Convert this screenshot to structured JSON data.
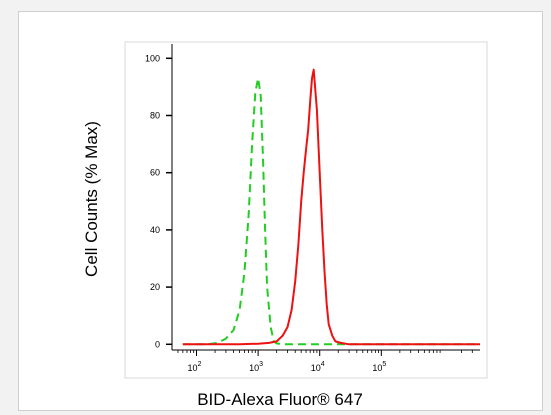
{
  "chart_data": {
    "type": "line",
    "title": "",
    "xlabel": "BID-Alexa Fluor® 647",
    "ylabel": "Cell Counts (% Max)",
    "x_scale": "log",
    "xlim": [
      40,
      4000000
    ],
    "ylim": [
      -2,
      105
    ],
    "y_ticks": [
      0,
      20,
      40,
      60,
      80,
      100
    ],
    "x_ticks": [
      {
        "label_base": "10",
        "label_exp": "2",
        "value": 100
      },
      {
        "label_base": "10",
        "label_exp": "3",
        "value": 1000
      },
      {
        "label_base": "10",
        "label_exp": "4",
        "value": 10000
      },
      {
        "label_base": "10",
        "label_exp": "5",
        "value": 100000
      }
    ],
    "series": [
      {
        "color": "#22cc22",
        "dash": true,
        "x": [
          60,
          150,
          220,
          300,
          400,
          500,
          600,
          700,
          800,
          900,
          1000,
          1100,
          1200,
          1300,
          1400,
          1600,
          1800,
          2000,
          2500,
          5000,
          50000,
          4000000
        ],
        "y": [
          0,
          0,
          0.5,
          2,
          5,
          12,
          25,
          45,
          70,
          88,
          93,
          87,
          65,
          40,
          20,
          6,
          1,
          0.3,
          0,
          0,
          0,
          0
        ]
      },
      {
        "color": "#ee1111",
        "dash": false,
        "x": [
          60,
          500,
          1000,
          1500,
          2000,
          2500,
          3000,
          3500,
          4000,
          4500,
          5000,
          5500,
          6000,
          6500,
          7000,
          7500,
          8000,
          9000,
          10000,
          11000,
          12000,
          13000,
          14000,
          16000,
          18000,
          22000,
          30000,
          100000,
          4000000
        ],
        "y": [
          0,
          0,
          0.2,
          0.5,
          1,
          3,
          6,
          12,
          22,
          35,
          50,
          60,
          68,
          75,
          85,
          93,
          96,
          82,
          60,
          40,
          25,
          14,
          7,
          3,
          1,
          0.5,
          0,
          0,
          0
        ]
      }
    ]
  }
}
